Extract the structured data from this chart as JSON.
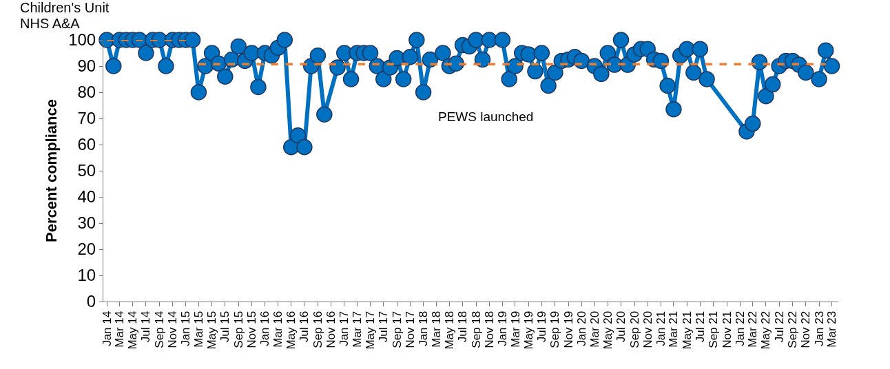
{
  "chart_data": {
    "type": "line",
    "title": "Children's Unit",
    "subtitle": "NHS A&A",
    "ylabel": "Percent compliance",
    "annotations": [
      "PEWS launched"
    ],
    "series": [
      {
        "color": "#0070c0",
        "marker": "circle",
        "line_style": "solid",
        "x": [
          "2014-01",
          "2014-02",
          "2014-03",
          "2014-04",
          "2014-05",
          "2014-06",
          "2014-07",
          "2014-08",
          "2014-09",
          "2014-10",
          "2014-11",
          "2014-12",
          "2015-01",
          "2015-02",
          "2015-03",
          "2015-04",
          "2015-05",
          "2015-06",
          "2015-07",
          "2015-08",
          "2015-09",
          "2015-10",
          "2015-11",
          "2015-12",
          "2016-01",
          "2016-02",
          "2016-03",
          "2016-04",
          "2016-05",
          "2016-06",
          "2016-07",
          "2016-08",
          "2016-09",
          "2016-10",
          "2016-12",
          "2017-01",
          "2017-02",
          "2017-03",
          "2017-04",
          "2017-05",
          "2017-06",
          "2017-07",
          "2017-08",
          "2017-09",
          "2017-10",
          "2017-11",
          "2017-12",
          "2018-01",
          "2018-02",
          "2018-04",
          "2018-05",
          "2018-06",
          "2018-07",
          "2018-08",
          "2018-09",
          "2018-10",
          "2018-11",
          "2019-01",
          "2019-02",
          "2019-03",
          "2019-04",
          "2019-05",
          "2019-06",
          "2019-07",
          "2019-08",
          "2019-09",
          "2019-10",
          "2019-11",
          "2019-12",
          "2020-01",
          "2020-03",
          "2020-04",
          "2020-05",
          "2020-06",
          "2020-07",
          "2020-08",
          "2020-09",
          "2020-10",
          "2020-11",
          "2020-12",
          "2021-01",
          "2021-02",
          "2021-03",
          "2021-04",
          "2021-05",
          "2021-06",
          "2021-07",
          "2021-08",
          "2022-02",
          "2022-03",
          "2022-04",
          "2022-05",
          "2022-06",
          "2022-07",
          "2022-08",
          "2022-09",
          "2022-10",
          "2022-11",
          "2023-01",
          "2023-02",
          "2023-03"
        ],
        "values": [
          100,
          90,
          100,
          100,
          100,
          100,
          95,
          100,
          100,
          90,
          100,
          100,
          100,
          100,
          80,
          90,
          95,
          91,
          86,
          92.5,
          97.5,
          92,
          95,
          82,
          95,
          94,
          97,
          100,
          59,
          63.5,
          59,
          90,
          94,
          71.5,
          89.5,
          95,
          85,
          95,
          95,
          95,
          90,
          85,
          89.5,
          93,
          85,
          93.5,
          100,
          80,
          92.5,
          95,
          90,
          91,
          98,
          97.5,
          100,
          92.5,
          100,
          100,
          85,
          90,
          95,
          94.5,
          88,
          95,
          82.5,
          87.5,
          92,
          92.5,
          93.5,
          92,
          90,
          87,
          95,
          90.5,
          100,
          90.5,
          94.5,
          96.5,
          96.5,
          92.5,
          92,
          82.5,
          73.5,
          94,
          96.5,
          87.5,
          96.5,
          85,
          65,
          68,
          91.5,
          78.5,
          83,
          90,
          92,
          92,
          90.5,
          87.5,
          85,
          96,
          90
        ]
      },
      {
        "type": "line",
        "color": "#ed7d31",
        "marker": "none",
        "line_style": "dashed",
        "x": [
          "2014-01",
          "2015-01"
        ],
        "values": [
          100,
          100
        ]
      },
      {
        "type": "line",
        "color": "#ed7d31",
        "marker": "none",
        "line_style": "dashed",
        "x": [
          "2015-03",
          "2023-02"
        ],
        "values": [
          90.7,
          90.7
        ]
      }
    ],
    "xlim": [
      "2013-12-16",
      "2023-03-31"
    ],
    "xticks": [
      {
        "value": "2014-01",
        "label": "Jan 14"
      },
      {
        "value": "2014-03",
        "label": "Mar 14"
      },
      {
        "value": "2014-05",
        "label": "May 14"
      },
      {
        "value": "2014-07",
        "label": "Jul 14"
      },
      {
        "value": "2014-09",
        "label": "Sep 14"
      },
      {
        "value": "2014-11",
        "label": "Nov 14"
      },
      {
        "value": "2015-01",
        "label": "Jan 15"
      },
      {
        "value": "2015-03",
        "label": "Mar 15"
      },
      {
        "value": "2015-05",
        "label": "May 15"
      },
      {
        "value": "2015-07",
        "label": "Jul 15"
      },
      {
        "value": "2015-09",
        "label": "Sep 15"
      },
      {
        "value": "2015-11",
        "label": "Nov 15"
      },
      {
        "value": "2016-01",
        "label": "Jan 16"
      },
      {
        "value": "2016-03",
        "label": "Mar 16"
      },
      {
        "value": "2016-05",
        "label": "May 16"
      },
      {
        "value": "2016-07",
        "label": "Jul 16"
      },
      {
        "value": "2016-09",
        "label": "Sep 16"
      },
      {
        "value": "2016-11",
        "label": "Nov 16"
      },
      {
        "value": "2017-01",
        "label": "Jan 17"
      },
      {
        "value": "2017-03",
        "label": "Mar 17"
      },
      {
        "value": "2017-05",
        "label": "May 17"
      },
      {
        "value": "2017-07",
        "label": "Jul 17"
      },
      {
        "value": "2017-09",
        "label": "Sep 17"
      },
      {
        "value": "2017-11",
        "label": "Nov 17"
      },
      {
        "value": "2018-01",
        "label": "Jan 18"
      },
      {
        "value": "2018-03",
        "label": "Mar 18"
      },
      {
        "value": "2018-05",
        "label": "May 18"
      },
      {
        "value": "2018-07",
        "label": "Jul 18"
      },
      {
        "value": "2018-09",
        "label": "Sep 18"
      },
      {
        "value": "2018-11",
        "label": "Nov 18"
      },
      {
        "value": "2019-01",
        "label": "Jan 19"
      },
      {
        "value": "2019-03",
        "label": "Mar 19"
      },
      {
        "value": "2019-05",
        "label": "May 19"
      },
      {
        "value": "2019-07",
        "label": "Jul 19"
      },
      {
        "value": "2019-09",
        "label": "Sep 19"
      },
      {
        "value": "2019-11",
        "label": "Nov 19"
      },
      {
        "value": "2020-01",
        "label": "Jan 20"
      },
      {
        "value": "2020-03",
        "label": "Mar 20"
      },
      {
        "value": "2020-05",
        "label": "May 20"
      },
      {
        "value": "2020-07",
        "label": "Jul 20"
      },
      {
        "value": "2020-09",
        "label": "Sep 20"
      },
      {
        "value": "2020-11",
        "label": "Nov 20"
      },
      {
        "value": "2021-01",
        "label": "Jan 21"
      },
      {
        "value": "2021-03",
        "label": "Mar 21"
      },
      {
        "value": "2021-05",
        "label": "May 21"
      },
      {
        "value": "2021-07",
        "label": "Jul 21"
      },
      {
        "value": "2021-09",
        "label": "Sep 21"
      },
      {
        "value": "2021-11",
        "label": "Nov 21"
      },
      {
        "value": "2022-01",
        "label": "Jan 22"
      },
      {
        "value": "2022-03",
        "label": "Mar 22"
      },
      {
        "value": "2022-05",
        "label": "May 22"
      },
      {
        "value": "2022-07",
        "label": "Jul 22"
      },
      {
        "value": "2022-09",
        "label": "Sep 22"
      },
      {
        "value": "2022-11",
        "label": "Nov 22"
      },
      {
        "value": "2023-01",
        "label": "Jan 23"
      },
      {
        "value": "2023-03",
        "label": "Mar 23"
      }
    ],
    "ylim": [
      0,
      100
    ],
    "yticks": [
      0,
      10,
      20,
      30,
      40,
      50,
      60,
      70,
      80,
      90,
      100
    ]
  }
}
